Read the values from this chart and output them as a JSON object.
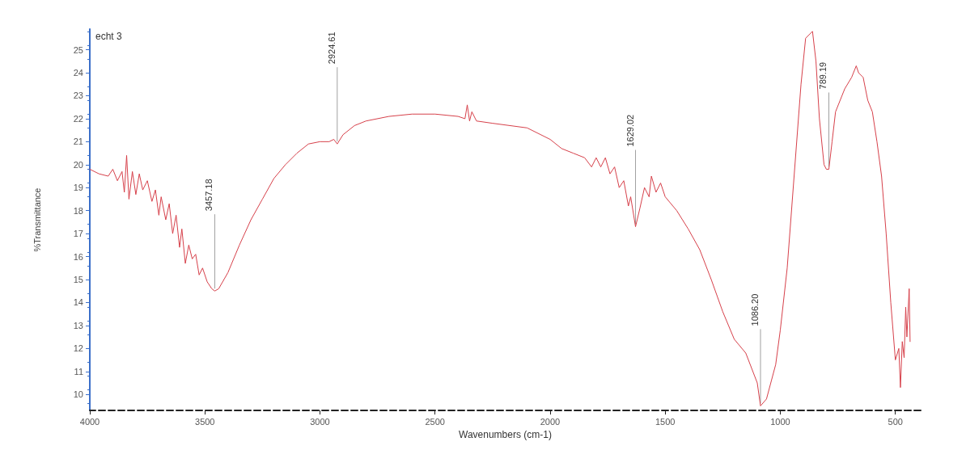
{
  "chart_data": {
    "type": "line",
    "title": "echt 3",
    "xlabel": "Wavenumbers (cm-1)",
    "ylabel": "%Transmittance",
    "xlim": [
      4000,
      390
    ],
    "ylim": [
      9.3,
      25.9
    ],
    "xticks": [
      4000,
      3500,
      3000,
      2500,
      2000,
      1500,
      1000,
      500
    ],
    "yticks": [
      10,
      11,
      12,
      13,
      14,
      15,
      16,
      17,
      18,
      19,
      20,
      21,
      22,
      23,
      24,
      25
    ],
    "grid": false,
    "marker": "none",
    "line_style": "solid",
    "series": [
      {
        "color": "#d6404a",
        "x": [
          4000,
          3960,
          3920,
          3900,
          3880,
          3860,
          3850,
          3840,
          3830,
          3815,
          3800,
          3785,
          3770,
          3750,
          3730,
          3715,
          3700,
          3690,
          3670,
          3655,
          3640,
          3625,
          3610,
          3600,
          3585,
          3570,
          3555,
          3540,
          3525,
          3510,
          3490,
          3470,
          3457,
          3440,
          3400,
          3350,
          3300,
          3250,
          3200,
          3150,
          3100,
          3050,
          3000,
          2960,
          2940,
          2925,
          2900,
          2850,
          2800,
          2700,
          2600,
          2500,
          2400,
          2370,
          2360,
          2350,
          2340,
          2320,
          2250,
          2100,
          2000,
          1950,
          1900,
          1850,
          1820,
          1800,
          1780,
          1760,
          1740,
          1720,
          1700,
          1680,
          1660,
          1650,
          1629,
          1610,
          1590,
          1570,
          1560,
          1540,
          1520,
          1500,
          1450,
          1400,
          1350,
          1300,
          1250,
          1200,
          1150,
          1100,
          1086,
          1060,
          1020,
          1000,
          970,
          940,
          910,
          890,
          860,
          845,
          830,
          810,
          800,
          789,
          775,
          760,
          720,
          690,
          670,
          660,
          640,
          620,
          600,
          580,
          560,
          540,
          520,
          500,
          485,
          478,
          470,
          462,
          455,
          450,
          440,
          436
        ],
        "values": [
          19.8,
          19.6,
          19.5,
          19.8,
          19.3,
          19.7,
          18.8,
          20.4,
          18.5,
          19.7,
          18.7,
          19.6,
          18.9,
          19.3,
          18.4,
          18.9,
          17.8,
          18.6,
          17.6,
          18.3,
          17.0,
          17.8,
          16.4,
          17.2,
          15.7,
          16.5,
          15.9,
          16.1,
          15.2,
          15.5,
          14.9,
          14.6,
          14.5,
          14.6,
          15.3,
          16.5,
          17.6,
          18.5,
          19.4,
          20.0,
          20.5,
          20.9,
          21.0,
          21.0,
          21.1,
          20.9,
          21.3,
          21.7,
          21.9,
          22.1,
          22.2,
          22.2,
          22.1,
          22.0,
          22.6,
          21.9,
          22.3,
          21.9,
          21.8,
          21.6,
          21.1,
          20.7,
          20.5,
          20.3,
          19.9,
          20.3,
          19.9,
          20.3,
          19.6,
          19.9,
          19.0,
          19.3,
          18.2,
          18.6,
          17.3,
          18.1,
          19.0,
          18.6,
          19.5,
          18.8,
          19.2,
          18.6,
          18.0,
          17.2,
          16.3,
          15.0,
          13.6,
          12.4,
          11.8,
          10.5,
          9.5,
          9.8,
          11.3,
          12.8,
          15.5,
          19.5,
          23.5,
          25.5,
          25.8,
          24.5,
          22.0,
          20.0,
          19.8,
          19.8,
          21.0,
          22.3,
          23.3,
          23.8,
          24.3,
          24.0,
          23.8,
          22.8,
          22.3,
          21.0,
          19.5,
          17.0,
          14.0,
          11.5,
          12.0,
          10.3,
          12.3,
          11.6,
          13.8,
          12.5,
          14.6,
          12.3
        ]
      }
    ],
    "annotations": [
      {
        "text": "3457.18",
        "x": 3457,
        "y": 14.5
      },
      {
        "text": "2924.61",
        "x": 2925,
        "y": 20.9
      },
      {
        "text": "1629.02",
        "x": 1629,
        "y": 17.3
      },
      {
        "text": "1086.20",
        "x": 1086,
        "y": 9.5
      },
      {
        "text": "789.19",
        "x": 789,
        "y": 19.8
      }
    ]
  }
}
